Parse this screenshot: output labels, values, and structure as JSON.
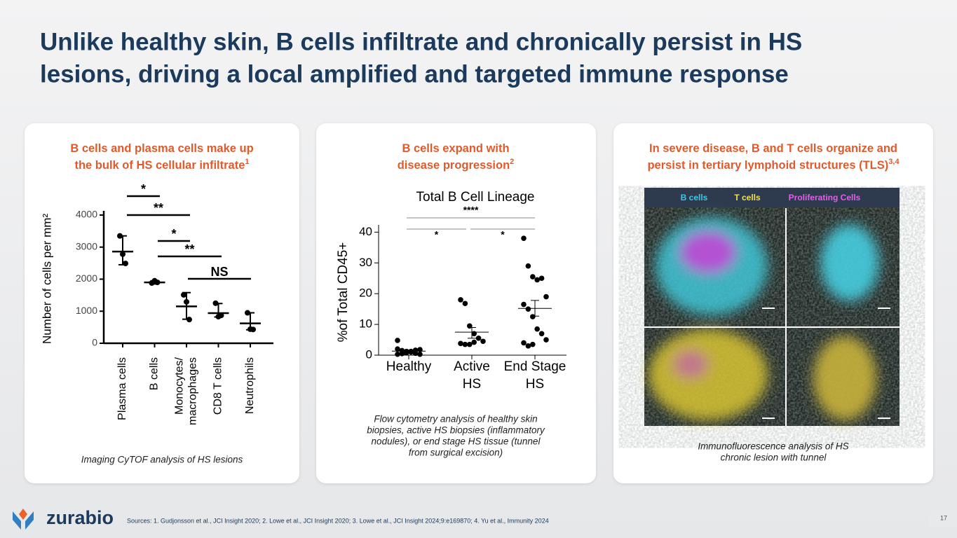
{
  "header": {
    "title": [
      "Unlike healthy skin, B cells infiltrate and chronically persist in HS",
      "lesions, driving a local amplified and targeted immune response"
    ]
  },
  "panels": [
    {
      "heading": [
        "B cells and plasma cells make up",
        "the bulk of HS cellular infiltrate"
      ],
      "heading_ref": "1",
      "caption": [
        "Imaging CyTOF analysis of HS lesions"
      ]
    },
    {
      "heading": [
        "B cells expand with",
        "disease progression"
      ],
      "heading_ref": "2",
      "caption": [
        "Flow cytometry analysis of healthy skin",
        "biopsies, active HS biopsies (inflammatory",
        "nodules), or end stage HS tissue (tunnel",
        "from surgical excision)"
      ]
    },
    {
      "heading": [
        "In severe disease, B and T cells organize and",
        "persist in tertiary lymphoid structures (TLS)"
      ],
      "heading_ref": "3,4",
      "image_legend": [
        "B cells",
        "T cells",
        "Proliferating Cells"
      ],
      "caption": [
        "Immunofluorescence analysis of HS",
        "chronic lesion with tunnel"
      ]
    }
  ],
  "chart_data": [
    {
      "type": "scatter",
      "y_label": "Number of cells per mm²",
      "categories": [
        [
          "Plasma cells"
        ],
        [
          "B cells"
        ],
        [
          "Monocytes/",
          "macrophages"
        ],
        [
          "CD8 T cells"
        ],
        [
          "Neutrophils"
        ]
      ],
      "points": [
        [
          3350,
          2780,
          2490
        ],
        [
          1880,
          1950,
          1900
        ],
        [
          1510,
          1290,
          740
        ],
        [
          1250,
          830,
          870
        ],
        [
          950,
          440,
          430
        ]
      ],
      "means": [
        2860,
        1900,
        1150,
        940,
        620
      ],
      "error_low": [
        2450,
        1850,
        750,
        820,
        420
      ],
      "error_high": [
        3350,
        1950,
        1580,
        1240,
        950
      ],
      "significance": [
        "*",
        "**",
        "*",
        "**",
        "NS"
      ],
      "ylim": [
        0,
        4000
      ],
      "yticks": [
        0,
        1000,
        2000,
        3000,
        4000
      ],
      "color": "#000000"
    },
    {
      "type": "scatter",
      "title": "Total B Cell Lineage",
      "y_label": "%of Total CD45+",
      "categories": [
        [
          "Healthy"
        ],
        [
          "Active",
          "HS"
        ],
        [
          "End Stage",
          "HS"
        ]
      ],
      "points": [
        [
          2.0,
          1.5,
          1.2,
          1.0,
          0.6,
          0.3,
          0.3,
          0.5,
          0.8,
          1.2,
          1.6,
          1.8,
          4.8
        ],
        [
          18,
          16.8,
          9.5,
          7,
          5.5,
          4.5,
          3.8,
          3.5,
          3.5,
          4.2
        ],
        [
          38,
          29,
          25.5,
          24.5,
          25,
          19,
          16.5,
          15,
          12.5,
          8.5,
          7,
          5,
          4,
          3,
          3.5
        ]
      ],
      "means": [
        1.3,
        7.5,
        15.2
      ],
      "error_low": [
        0.9,
        5.5,
        12.7
      ],
      "error_high": [
        1.7,
        9,
        17.8
      ],
      "significance": [
        "****",
        "*",
        "*"
      ],
      "ylim": [
        0,
        41
      ],
      "yticks": [
        0,
        10,
        20,
        30,
        40
      ],
      "color": "#000000"
    }
  ],
  "footer": {
    "logo": "zurabio",
    "sources": "Sources: 1. Gudjonsson et al., JCI Insight 2020; 2. Lowe et al., JCI Insight 2020; 3. Lowe et al., JCI Insight 2024;9:e169870; 4. Yu et al., Immunity 2024",
    "page": "17"
  }
}
